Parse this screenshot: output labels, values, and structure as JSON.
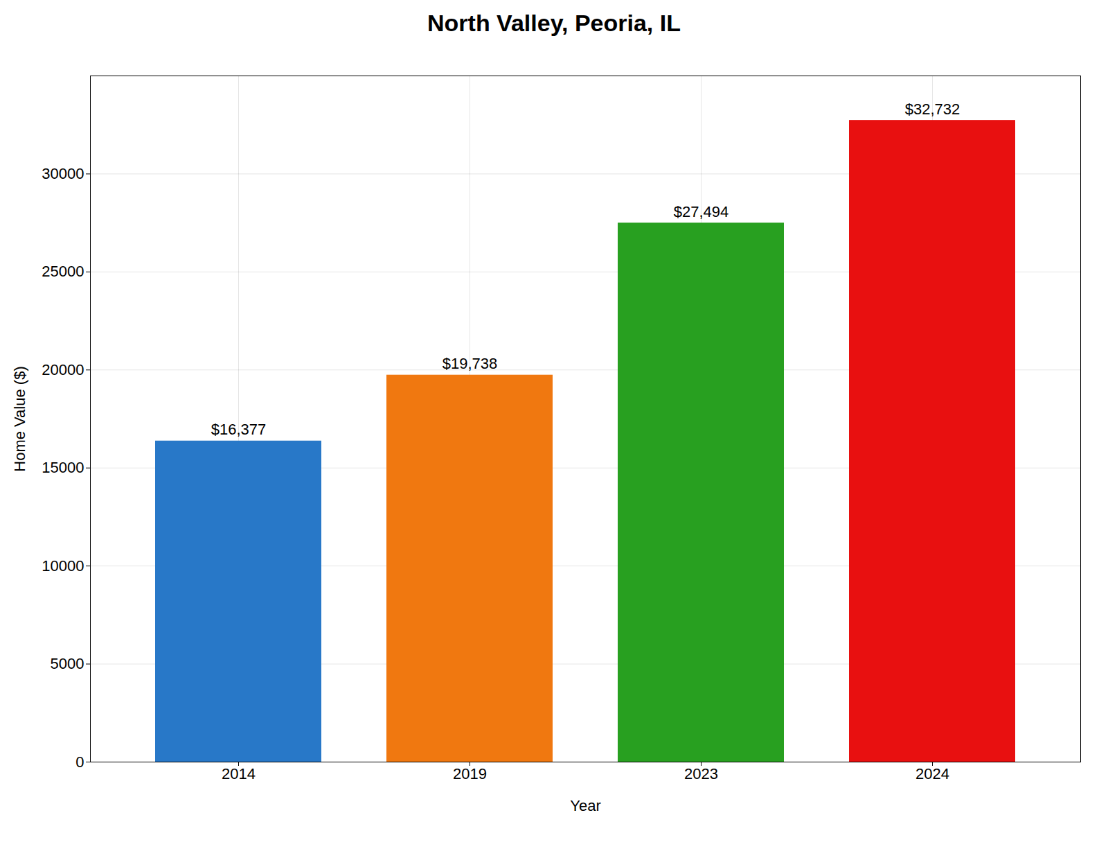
{
  "chart_data": {
    "type": "bar",
    "title": "North Valley, Peoria, IL",
    "xlabel": "Year",
    "ylabel": "Home Value ($)",
    "categories": [
      "2014",
      "2019",
      "2023",
      "2024"
    ],
    "values": [
      16377,
      19738,
      27494,
      32732
    ],
    "value_labels": [
      "$16,377",
      "$19,738",
      "$27,494",
      "$32,732"
    ],
    "colors": [
      "#2878c8",
      "#f07810",
      "#28a020",
      "#e81010"
    ],
    "ylim": [
      0,
      35000
    ],
    "yticks": [
      0,
      5000,
      10000,
      15000,
      20000,
      25000,
      30000
    ],
    "grid": true,
    "data_labels": true
  }
}
